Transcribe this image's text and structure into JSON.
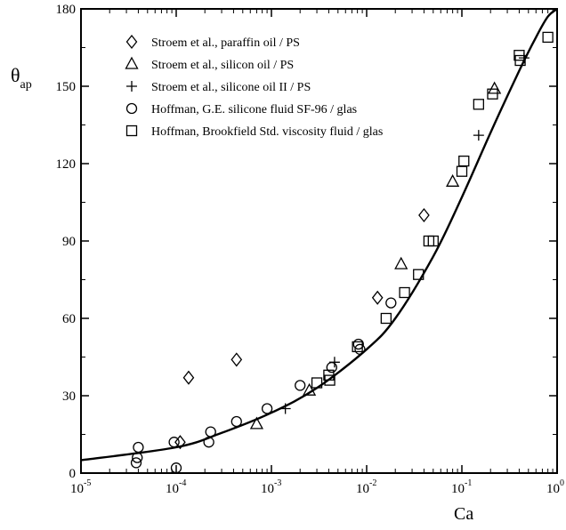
{
  "chart_data": {
    "type": "scatter",
    "title": "",
    "xlabel": "Ca",
    "ylabel_main": "θ",
    "ylabel_sub": "ap",
    "x_scale": "log",
    "xlim": [
      1e-05,
      1
    ],
    "ylim": [
      0,
      180
    ],
    "x_ticks": [
      {
        "value": 1e-05,
        "base": "10",
        "exp": "-5"
      },
      {
        "value": 0.0001,
        "base": "10",
        "exp": "-4"
      },
      {
        "value": 0.001,
        "base": "10",
        "exp": "-3"
      },
      {
        "value": 0.01,
        "base": "10",
        "exp": "-2"
      },
      {
        "value": 0.1,
        "base": "10",
        "exp": "-1"
      },
      {
        "value": 1,
        "base": "10",
        "exp": "0"
      }
    ],
    "y_ticks": [
      "0",
      "30",
      "60",
      "90",
      "120",
      "150",
      "180"
    ],
    "grid": false,
    "legend_position": "top-left",
    "series": [
      {
        "name": "Stroem et al.,  paraffin oil / PS",
        "marker": "diamond",
        "points": [
          [
            0.00011,
            12
          ],
          [
            0.000135,
            37
          ],
          [
            0.00043,
            44
          ],
          [
            0.013,
            68
          ],
          [
            0.04,
            100
          ]
        ]
      },
      {
        "name": "Stroem et al., silicon oil / PS",
        "marker": "triangle",
        "points": [
          [
            0.0007,
            19
          ],
          [
            0.0025,
            32
          ],
          [
            0.023,
            81
          ],
          [
            0.08,
            113
          ],
          [
            0.22,
            149
          ]
        ]
      },
      {
        "name": "Stroem et al., silicone oil II / PS",
        "marker": "plus",
        "points": [
          [
            0.0014,
            25
          ],
          [
            0.0046,
            43
          ],
          [
            0.15,
            131
          ],
          [
            0.45,
            161
          ]
        ]
      },
      {
        "name": "Hoffman, G.E. silicone fluid SF-96 / glas",
        "marker": "circle",
        "points": [
          [
            3.8e-05,
            4
          ],
          [
            3.9e-05,
            6
          ],
          [
            4e-05,
            10
          ],
          [
            9.5e-05,
            12
          ],
          [
            0.0001,
            2
          ],
          [
            0.00022,
            12
          ],
          [
            0.00023,
            16
          ],
          [
            0.00043,
            20
          ],
          [
            0.0009,
            25
          ],
          [
            0.002,
            34
          ],
          [
            0.0043,
            41
          ],
          [
            0.0082,
            50
          ],
          [
            0.0085,
            48
          ],
          [
            0.018,
            66
          ]
        ]
      },
      {
        "name": "Hoffman, Brookfield Std. viscosity fluid / glas",
        "marker": "square",
        "points": [
          [
            0.003,
            35
          ],
          [
            0.004,
            38
          ],
          [
            0.0041,
            36
          ],
          [
            0.008,
            49
          ],
          [
            0.016,
            60
          ],
          [
            0.025,
            70
          ],
          [
            0.035,
            77
          ],
          [
            0.045,
            90
          ],
          [
            0.05,
            90
          ],
          [
            0.1,
            117
          ],
          [
            0.105,
            121
          ],
          [
            0.15,
            143
          ],
          [
            0.21,
            147
          ],
          [
            0.4,
            162
          ],
          [
            0.41,
            160
          ],
          [
            0.8,
            169
          ]
        ]
      }
    ],
    "curve": {
      "name": "",
      "points": [
        [
          1e-05,
          5
        ],
        [
          0.0001,
          10
        ],
        [
          0.0003,
          15.6
        ],
        [
          0.001,
          23.4
        ],
        [
          0.003,
          33
        ],
        [
          0.01,
          48
        ],
        [
          0.02,
          60
        ],
        [
          0.05,
          84
        ],
        [
          0.1,
          107
        ],
        [
          0.2,
          132
        ],
        [
          0.4,
          156
        ],
        [
          0.6,
          169
        ],
        [
          0.8,
          177
        ],
        [
          1,
          180
        ]
      ]
    }
  }
}
